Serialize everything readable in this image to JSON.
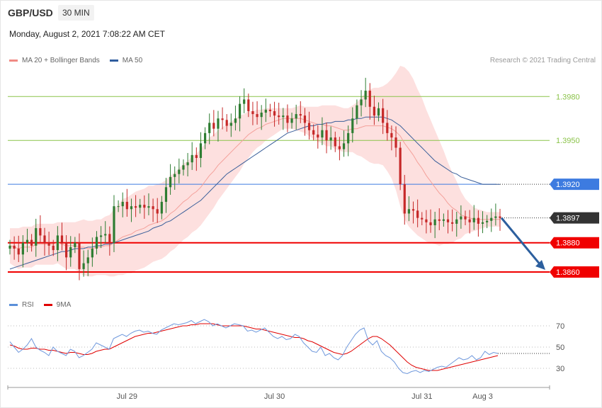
{
  "header": {
    "symbol": "GBP/USD",
    "interval": "30 MIN",
    "datetime": "Monday, August 2, 2021 7:08:22 AM CET"
  },
  "legend": {
    "items": [
      {
        "label": "MA 20 + Bollinger Bands",
        "color": "#f08a84"
      },
      {
        "label": "MA 50",
        "color": "#2f5d9e"
      }
    ],
    "rsi_items": [
      {
        "label": "RSI",
        "color": "#5b8fd9"
      },
      {
        "label": "9MA",
        "color": "#e00000"
      }
    ]
  },
  "credit": "Research © 2021 Trading Central",
  "colors": {
    "bull": "#2e7d32",
    "bear": "#c62828",
    "band": "#fde0df",
    "resistance": "#8bc34a",
    "pivot": "#3d7be0",
    "support": "#f00000",
    "last": "#333333",
    "arrow": "#2c5f9e"
  },
  "chart_data": {
    "type": "candlestick",
    "price_axis": {
      "min": 1.3845,
      "max": 1.4
    },
    "x_ticks": [
      {
        "label": "Jul 29",
        "index": 27
      },
      {
        "label": "Jul 30",
        "index": 61
      },
      {
        "label": "Jul 31",
        "index": 95
      },
      {
        "label": "Aug 3",
        "index": 109
      }
    ],
    "levels": [
      {
        "value": 1.398,
        "label": "1.3980",
        "kind": "resistance"
      },
      {
        "value": 1.395,
        "label": "1.3950",
        "kind": "resistance"
      },
      {
        "value": 1.392,
        "label": "1.3920",
        "kind": "pivot"
      },
      {
        "value": 1.3897,
        "label": "1.3897",
        "kind": "last"
      },
      {
        "value": 1.388,
        "label": "1.3880",
        "kind": "support"
      },
      {
        "value": 1.386,
        "label": "1.3860",
        "kind": "support"
      }
    ],
    "close": [
      1.3878,
      1.3876,
      1.3872,
      1.388,
      1.3882,
      1.3878,
      1.389,
      1.3885,
      1.388,
      1.3878,
      1.3875,
      1.3885,
      1.388,
      1.387,
      1.3877,
      1.388,
      1.3862,
      1.3866,
      1.387,
      1.3876,
      1.3884,
      1.3885,
      1.3886,
      1.388,
      1.3905,
      1.3905,
      1.3908,
      1.3903,
      1.3905,
      1.3904,
      1.3906,
      1.3904,
      1.3905,
      1.3903,
      1.39,
      1.3908,
      1.3918,
      1.3925,
      1.3927,
      1.393,
      1.3933,
      1.3935,
      1.394,
      1.3938,
      1.3948,
      1.3955,
      1.3962,
      1.3958,
      1.3965,
      1.3964,
      1.396,
      1.3962,
      1.3965,
      1.3975,
      1.3978,
      1.397,
      1.3968,
      1.3966,
      1.3969,
      1.3971,
      1.397,
      1.3967,
      1.3966,
      1.3967,
      1.3962,
      1.3965,
      1.3968,
      1.3967,
      1.3962,
      1.3957,
      1.3954,
      1.3952,
      1.3957,
      1.395,
      1.3952,
      1.3946,
      1.3944,
      1.3948,
      1.3955,
      1.3965,
      1.3974,
      1.3978,
      1.3984,
      1.3973,
      1.3967,
      1.3972,
      1.3962,
      1.3955,
      1.3952,
      1.3945,
      1.392,
      1.39,
      1.3903,
      1.3902,
      1.3897,
      1.3896,
      1.3894,
      1.3892,
      1.3896,
      1.3895,
      1.3896,
      1.3894,
      1.3893,
      1.3896,
      1.3898,
      1.3896,
      1.3894,
      1.3897,
      1.3893,
      1.3894,
      1.3895,
      1.3897,
      1.3898,
      1.3897
    ],
    "ma20": [
      1.3878,
      1.3877,
      1.3876,
      1.3877,
      1.3877,
      1.3877,
      1.3879,
      1.3879,
      1.3879,
      1.3879,
      1.3879,
      1.388,
      1.3879,
      1.3878,
      1.3878,
      1.3878,
      1.3877,
      1.3877,
      1.3876,
      1.3876,
      1.3877,
      1.3877,
      1.3878,
      1.3878,
      1.388,
      1.3882,
      1.3884,
      1.3885,
      1.3886,
      1.3888,
      1.3889,
      1.389,
      1.3892,
      1.3893,
      1.3894,
      1.3895,
      1.3897,
      1.39,
      1.3902,
      1.3905,
      1.3908,
      1.391,
      1.3913,
      1.3915,
      1.3918,
      1.3922,
      1.3926,
      1.3929,
      1.3933,
      1.3936,
      1.3939,
      1.3942,
      1.3945,
      1.3948,
      1.3951,
      1.3954,
      1.3956,
      1.3958,
      1.3959,
      1.3961,
      1.3962,
      1.3963,
      1.3964,
      1.3965,
      1.3965,
      1.3965,
      1.3965,
      1.3965,
      1.3964,
      1.3963,
      1.3962,
      1.3961,
      1.3961,
      1.396,
      1.396,
      1.3959,
      1.3958,
      1.3957,
      1.3957,
      1.3958,
      1.3958,
      1.3959,
      1.396,
      1.396,
      1.396,
      1.396,
      1.396,
      1.3959,
      1.3958,
      1.3956,
      1.3953,
      1.3948,
      1.3944,
      1.394,
      1.3935,
      1.3931,
      1.3926,
      1.3922,
      1.3918,
      1.3914,
      1.3911,
      1.3907,
      1.3904,
      1.3902,
      1.3899,
      1.3898,
      1.3897,
      1.3896,
      1.3896,
      1.3896,
      1.3896,
      1.3896,
      1.3896,
      1.3896
    ],
    "ma50": [
      1.3862,
      1.3863,
      1.3864,
      1.3865,
      1.3866,
      1.3867,
      1.3868,
      1.3869,
      1.387,
      1.3871,
      1.3872,
      1.3873,
      1.3874,
      1.3874,
      1.3875,
      1.3876,
      1.3876,
      1.3876,
      1.3877,
      1.3877,
      1.3878,
      1.3878,
      1.3879,
      1.3879,
      1.388,
      1.3881,
      1.3882,
      1.3883,
      1.3884,
      1.3885,
      1.3886,
      1.3887,
      1.3888,
      1.389,
      1.3891,
      1.3892,
      1.3894,
      1.3895,
      1.3897,
      1.3899,
      1.3901,
      1.3903,
      1.3905,
      1.3907,
      1.3909,
      1.3912,
      1.3915,
      1.3918,
      1.3921,
      1.3924,
      1.3927,
      1.3929,
      1.3931,
      1.3933,
      1.3935,
      1.3937,
      1.3939,
      1.3941,
      1.3943,
      1.3945,
      1.3947,
      1.3949,
      1.3951,
      1.3953,
      1.3955,
      1.3956,
      1.3957,
      1.3958,
      1.3959,
      1.396,
      1.396,
      1.3961,
      1.3961,
      1.3962,
      1.3962,
      1.3963,
      1.3963,
      1.3963,
      1.3964,
      1.3964,
      1.3965,
      1.3965,
      1.3966,
      1.3966,
      1.3966,
      1.3966,
      1.3966,
      1.3965,
      1.3964,
      1.3962,
      1.396,
      1.3957,
      1.3954,
      1.3951,
      1.3948,
      1.3945,
      1.3942,
      1.3939,
      1.3936,
      1.3934,
      1.3932,
      1.393,
      1.3928,
      1.3927,
      1.3925,
      1.3924,
      1.3923,
      1.3922,
      1.3921,
      1.392,
      1.392,
      1.392,
      1.392,
      1.392
    ],
    "band_width": [
      0.0012,
      0.0013,
      0.0014,
      0.0014,
      0.0014,
      0.0014,
      0.0014,
      0.0014,
      0.0014,
      0.0014,
      0.0014,
      0.0014,
      0.0015,
      0.0016,
      0.0016,
      0.0016,
      0.0018,
      0.0019,
      0.0019,
      0.0019,
      0.0019,
      0.0019,
      0.002,
      0.0021,
      0.0023,
      0.0024,
      0.0026,
      0.0026,
      0.0027,
      0.0027,
      0.0027,
      0.0027,
      0.0027,
      0.0026,
      0.0026,
      0.0026,
      0.0026,
      0.0026,
      0.0026,
      0.0026,
      0.0026,
      0.0026,
      0.0026,
      0.0026,
      0.0026,
      0.0026,
      0.0026,
      0.0025,
      0.0024,
      0.0023,
      0.0022,
      0.0021,
      0.002,
      0.0019,
      0.0017,
      0.0016,
      0.0014,
      0.0013,
      0.0012,
      0.0011,
      0.001,
      0.0009,
      0.0008,
      0.0007,
      0.0007,
      0.0007,
      0.0008,
      0.0009,
      0.0009,
      0.001,
      0.0011,
      0.0012,
      0.0013,
      0.0014,
      0.0014,
      0.0015,
      0.0015,
      0.0015,
      0.0015,
      0.0016,
      0.0018,
      0.002,
      0.0023,
      0.0025,
      0.0026,
      0.0026,
      0.0027,
      0.003,
      0.0034,
      0.004,
      0.0048,
      0.0052,
      0.0053,
      0.0052,
      0.005,
      0.0048,
      0.0045,
      0.0042,
      0.0039,
      0.0036,
      0.0032,
      0.0028,
      0.0024,
      0.002,
      0.0016,
      0.0012,
      0.001,
      0.0008,
      0.0007,
      0.0006,
      0.0005,
      0.0005,
      0.0005,
      0.0005
    ],
    "rsi_axis": {
      "min": 20,
      "max": 80,
      "ticks": [
        30,
        50,
        70
      ]
    },
    "rsi_ticks_labels": [
      "70",
      "50",
      "30"
    ],
    "rsi": [
      55,
      50,
      45,
      48,
      52,
      58,
      50,
      47,
      45,
      42,
      50,
      46,
      44,
      42,
      48,
      46,
      40,
      42,
      45,
      48,
      54,
      52,
      50,
      48,
      58,
      60,
      62,
      60,
      63,
      65,
      66,
      64,
      65,
      63,
      62,
      66,
      68,
      70,
      72,
      71,
      72,
      73,
      75,
      72,
      74,
      76,
      74,
      70,
      72,
      70,
      68,
      70,
      72,
      71,
      70,
      65,
      66,
      64,
      66,
      68,
      64,
      60,
      58,
      60,
      57,
      58,
      62,
      60,
      54,
      50,
      46,
      45,
      50,
      42,
      44,
      40,
      38,
      42,
      50,
      56,
      62,
      66,
      68,
      56,
      52,
      56,
      46,
      42,
      40,
      36,
      30,
      26,
      25,
      27,
      28,
      26,
      28,
      27,
      29,
      31,
      32,
      31,
      34,
      37,
      40,
      38,
      39,
      42,
      38,
      40,
      46,
      43,
      45,
      44
    ],
    "rsi_ma": [
      52,
      51,
      49,
      48,
      48,
      49,
      49,
      48,
      48,
      47,
      47,
      46,
      45,
      44,
      45,
      45,
      44,
      43,
      43,
      44,
      46,
      47,
      48,
      48,
      50,
      52,
      54,
      56,
      58,
      60,
      61,
      62,
      63,
      63,
      64,
      65,
      66,
      67,
      68,
      69,
      70,
      70,
      71,
      71,
      72,
      72,
      72,
      72,
      71,
      70,
      70,
      70,
      70,
      70,
      70,
      69,
      68,
      67,
      67,
      66,
      65,
      64,
      63,
      62,
      61,
      60,
      59,
      59,
      58,
      56,
      55,
      53,
      51,
      49,
      47,
      45,
      44,
      43,
      44,
      46,
      49,
      52,
      55,
      58,
      60,
      60,
      58,
      55,
      52,
      48,
      44,
      40,
      36,
      33,
      31,
      30,
      29,
      28,
      28,
      28,
      29,
      30,
      31,
      32,
      33,
      34,
      35,
      36,
      37,
      38,
      39,
      40,
      41,
      42
    ]
  }
}
